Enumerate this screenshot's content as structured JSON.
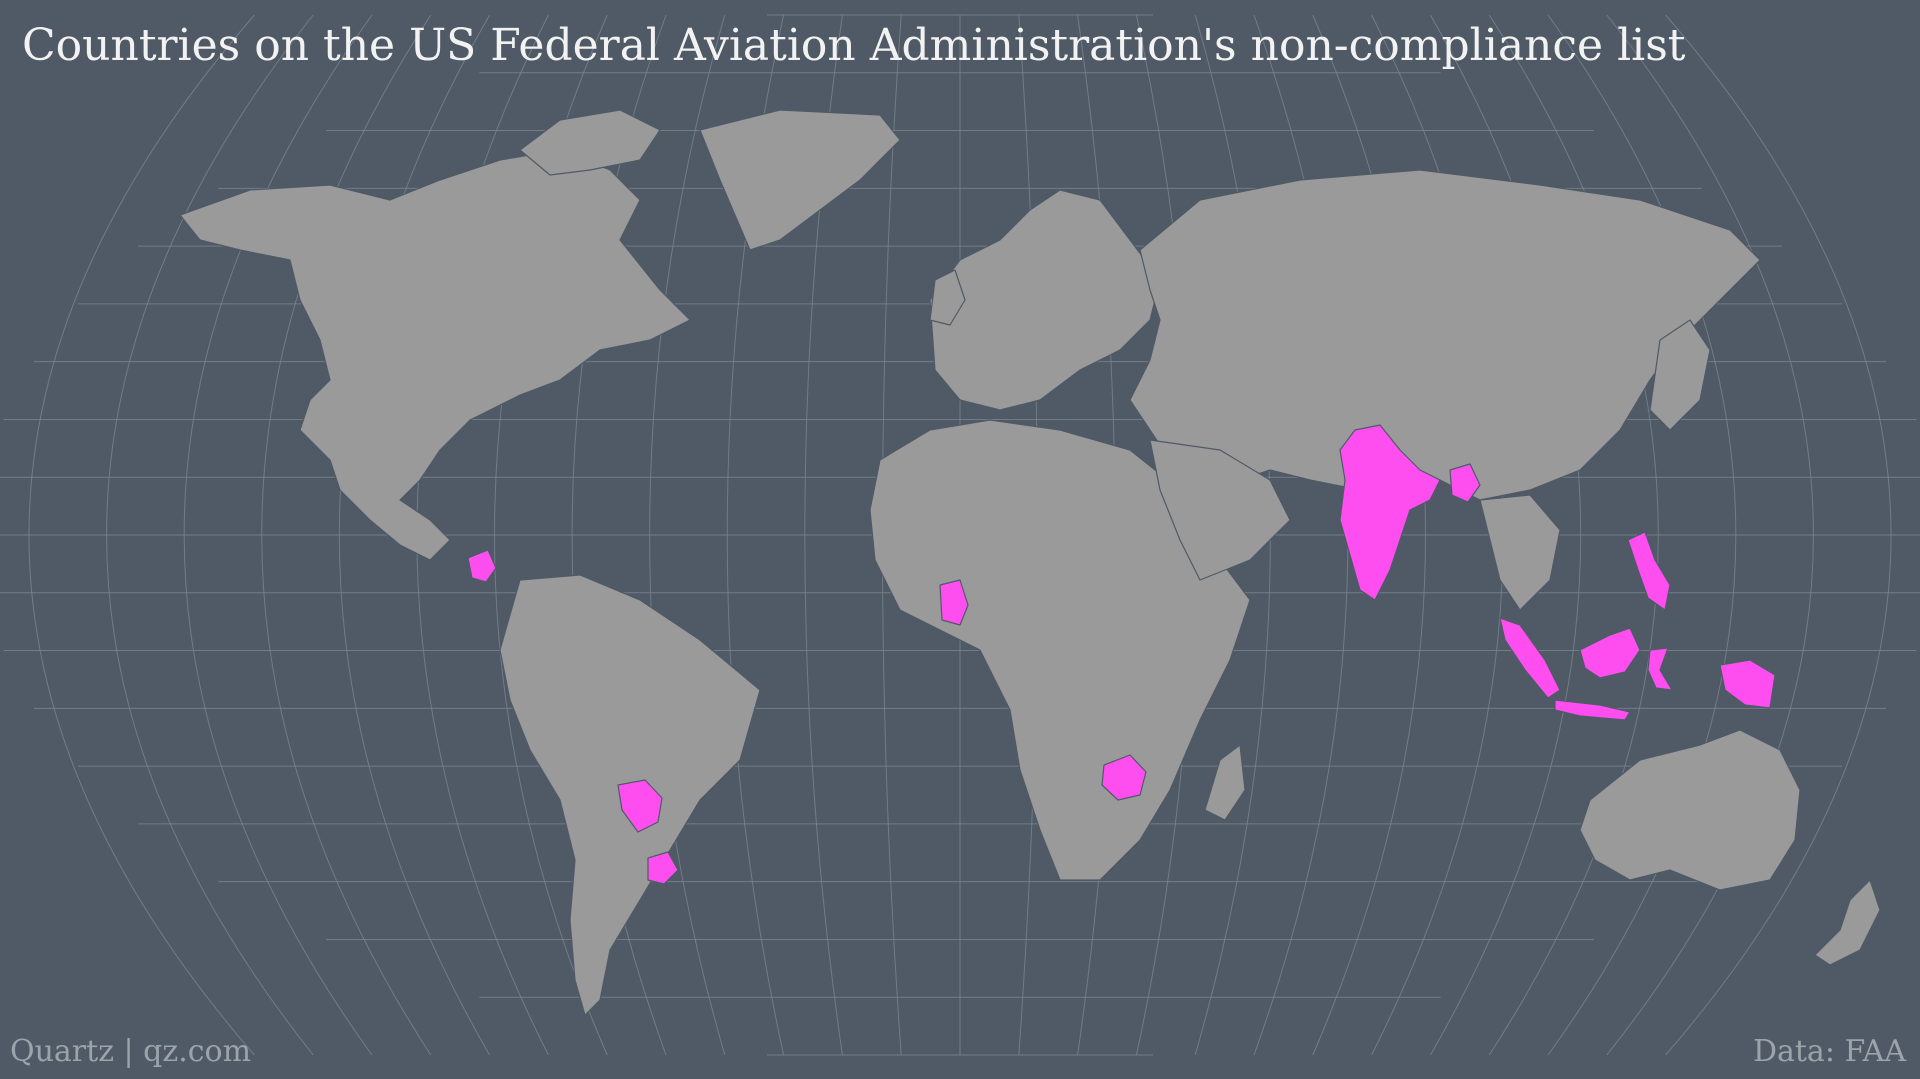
{
  "title": "Countries on the US Federal Aviation Administration's non-compliance list",
  "credit": "Quartz | qz.com",
  "source": "Data: FAA",
  "colors": {
    "background": "#4f5a66",
    "land": "#9a9a9a",
    "highlight": "#ff4ef0",
    "graticule": "#7b848e"
  },
  "highlighted_countries": [
    "Nicaragua",
    "Paraguay",
    "Uruguay",
    "Ghana",
    "Zimbabwe",
    "India",
    "Bangladesh",
    "Indonesia",
    "Philippines"
  ]
}
